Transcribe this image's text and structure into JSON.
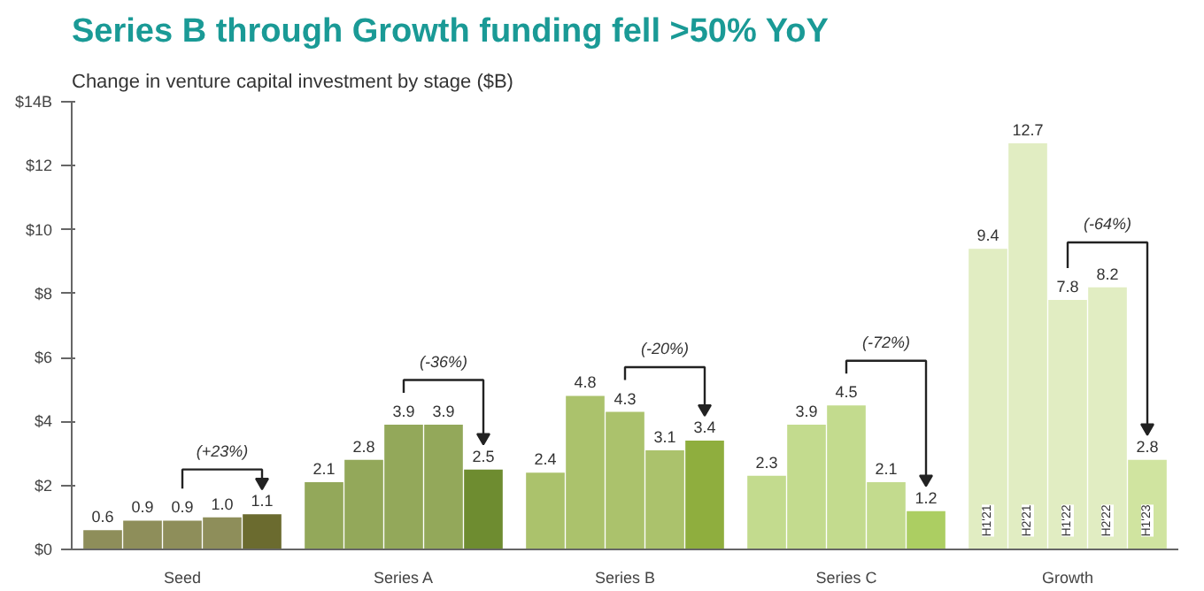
{
  "chart_data": {
    "type": "bar",
    "title": "Series B through Growth funding fell >50% YoY",
    "subtitle": "Change in venture capital investment by stage ($B)",
    "categories": [
      "Seed",
      "Series A",
      "Series B",
      "Series C",
      "Growth"
    ],
    "series": [
      {
        "name": "H1'21",
        "colors": [
          "#8e8e5a",
          "#93a85a",
          "#abc26c",
          "#c3db8e",
          "#e1edc2"
        ],
        "values": [
          0.6,
          2.1,
          2.4,
          2.3,
          9.4
        ],
        "value_labels": [
          "0.6",
          "2.1",
          "2.4",
          "2.3",
          "9.4"
        ]
      },
      {
        "name": "H2'21",
        "colors": [
          "#8e8e5a",
          "#93a85a",
          "#abc26c",
          "#c3db8e",
          "#e1edc2"
        ],
        "values": [
          0.9,
          2.8,
          4.8,
          3.9,
          12.7
        ],
        "value_labels": [
          "0.9",
          "2.8",
          "4.8",
          "3.9",
          "12.7"
        ]
      },
      {
        "name": "H1'22",
        "colors": [
          "#8e8e5a",
          "#93a85a",
          "#abc26c",
          "#c3db8e",
          "#e1edc2"
        ],
        "values": [
          0.9,
          3.9,
          4.3,
          4.5,
          7.8
        ],
        "value_labels": [
          "0.9",
          "3.9",
          "4.3",
          "4.5",
          "7.8"
        ]
      },
      {
        "name": "H2'22",
        "colors": [
          "#8e8e5a",
          "#93a85a",
          "#abc26c",
          "#c3db8e",
          "#e1edc2"
        ],
        "values": [
          1.0,
          3.9,
          3.1,
          2.1,
          8.2
        ],
        "value_labels": [
          "1.0",
          "3.9",
          "3.1",
          "2.1",
          "8.2"
        ]
      },
      {
        "name": "H1'23",
        "colors": [
          "#6b6b2f",
          "#6e8c30",
          "#8fae3e",
          "#acce62",
          "#d0e4a0"
        ],
        "values": [
          1.1,
          2.5,
          3.4,
          1.2,
          2.8
        ],
        "value_labels": [
          "1.1",
          "2.5",
          "3.4",
          "1.2",
          "2.8"
        ]
      }
    ],
    "ylim": [
      0,
      14
    ],
    "yticks": [
      {
        "value": 0,
        "label": "$0"
      },
      {
        "value": 2,
        "label": "$2"
      },
      {
        "value": 4,
        "label": "$4"
      },
      {
        "value": 6,
        "label": "$6"
      },
      {
        "value": 8,
        "label": "$8"
      },
      {
        "value": 10,
        "label": "$10"
      },
      {
        "value": 12,
        "label": "$12"
      },
      {
        "value": 14,
        "label": "$14B"
      }
    ],
    "annotations": [
      "(+23%)",
      "(-36%)",
      "(-20%)",
      "(-72%)",
      "(-64%)"
    ]
  }
}
